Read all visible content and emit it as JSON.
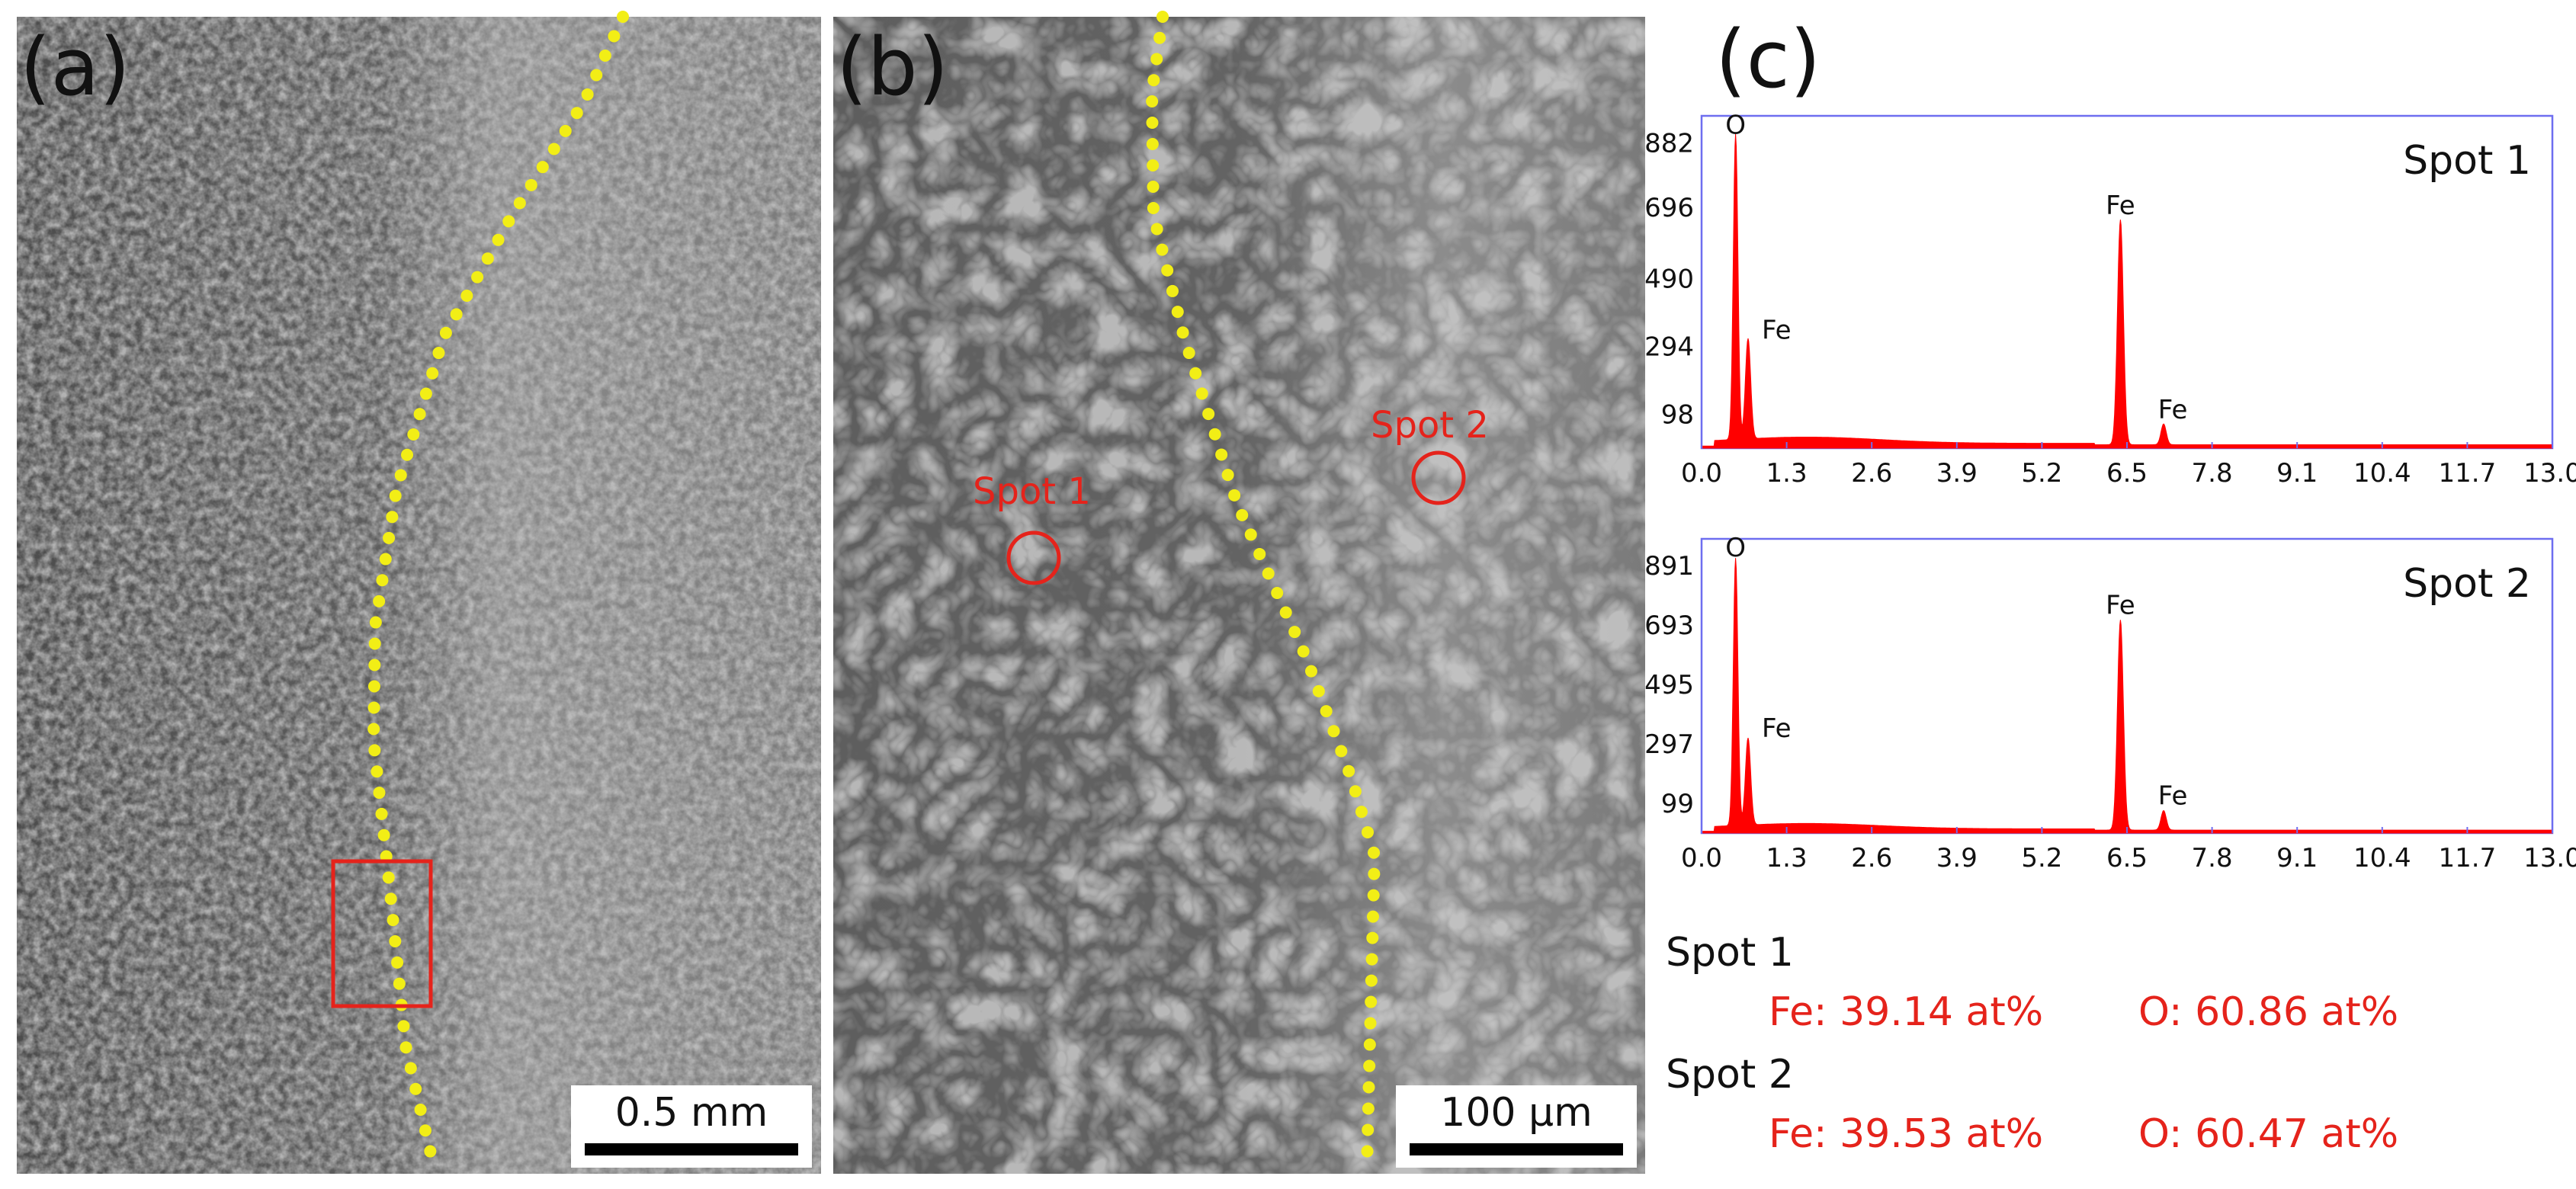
{
  "panels": {
    "a": {
      "label": "(a)",
      "scale_bar": "0.5 mm"
    },
    "b": {
      "label": "(b)",
      "scale_bar": "100 μm",
      "spot1": "Spot 1",
      "spot2": "Spot 2"
    },
    "c": {
      "label": "(c)"
    }
  },
  "colors": {
    "spectrum": "#ff0000",
    "frame": "#6e6ef0",
    "boundary": "#f2ee16",
    "marker": "#e5231b"
  },
  "chart_data": [
    {
      "type": "area",
      "title": "Spot 1",
      "xlabel": "",
      "ylabel": "",
      "xlim": [
        0.0,
        13.0
      ],
      "ylim": [
        0,
        960
      ],
      "xticks": [
        "0.0",
        "1.3",
        "2.6",
        "3.9",
        "5.2",
        "6.5",
        "7.8",
        "9.1",
        "10.4",
        "11.7",
        "13.0"
      ],
      "yticks": [
        98,
        294,
        490,
        696,
        882
      ],
      "peaks": [
        {
          "label": "O",
          "x": 0.52,
          "y": 882
        },
        {
          "label": "Fe",
          "x": 0.71,
          "y": 290
        },
        {
          "label": "Fe",
          "x": 6.4,
          "y": 650
        },
        {
          "label": "Fe",
          "x": 7.06,
          "y": 60
        }
      ]
    },
    {
      "type": "area",
      "title": "Spot 2",
      "xlabel": "",
      "ylabel": "",
      "xlim": [
        0.0,
        13.0
      ],
      "ylim": [
        0,
        980
      ],
      "xticks": [
        "0.0",
        "1.3",
        "2.6",
        "3.9",
        "5.2",
        "6.5",
        "7.8",
        "9.1",
        "10.4",
        "11.7",
        "13.0"
      ],
      "yticks": [
        99,
        297,
        495,
        693,
        891
      ],
      "peaks": [
        {
          "label": "O",
          "x": 0.52,
          "y": 891
        },
        {
          "label": "Fe",
          "x": 0.71,
          "y": 290
        },
        {
          "label": "Fe",
          "x": 6.4,
          "y": 700
        },
        {
          "label": "Fe",
          "x": 7.06,
          "y": 65
        }
      ]
    }
  ],
  "composition": [
    {
      "spot": "Spot 1",
      "fe": "Fe: 39.14 at%",
      "o": "O: 60.86 at%"
    },
    {
      "spot": "Spot 2",
      "fe": "Fe: 39.53 at%",
      "o": "O: 60.47 at%"
    }
  ]
}
